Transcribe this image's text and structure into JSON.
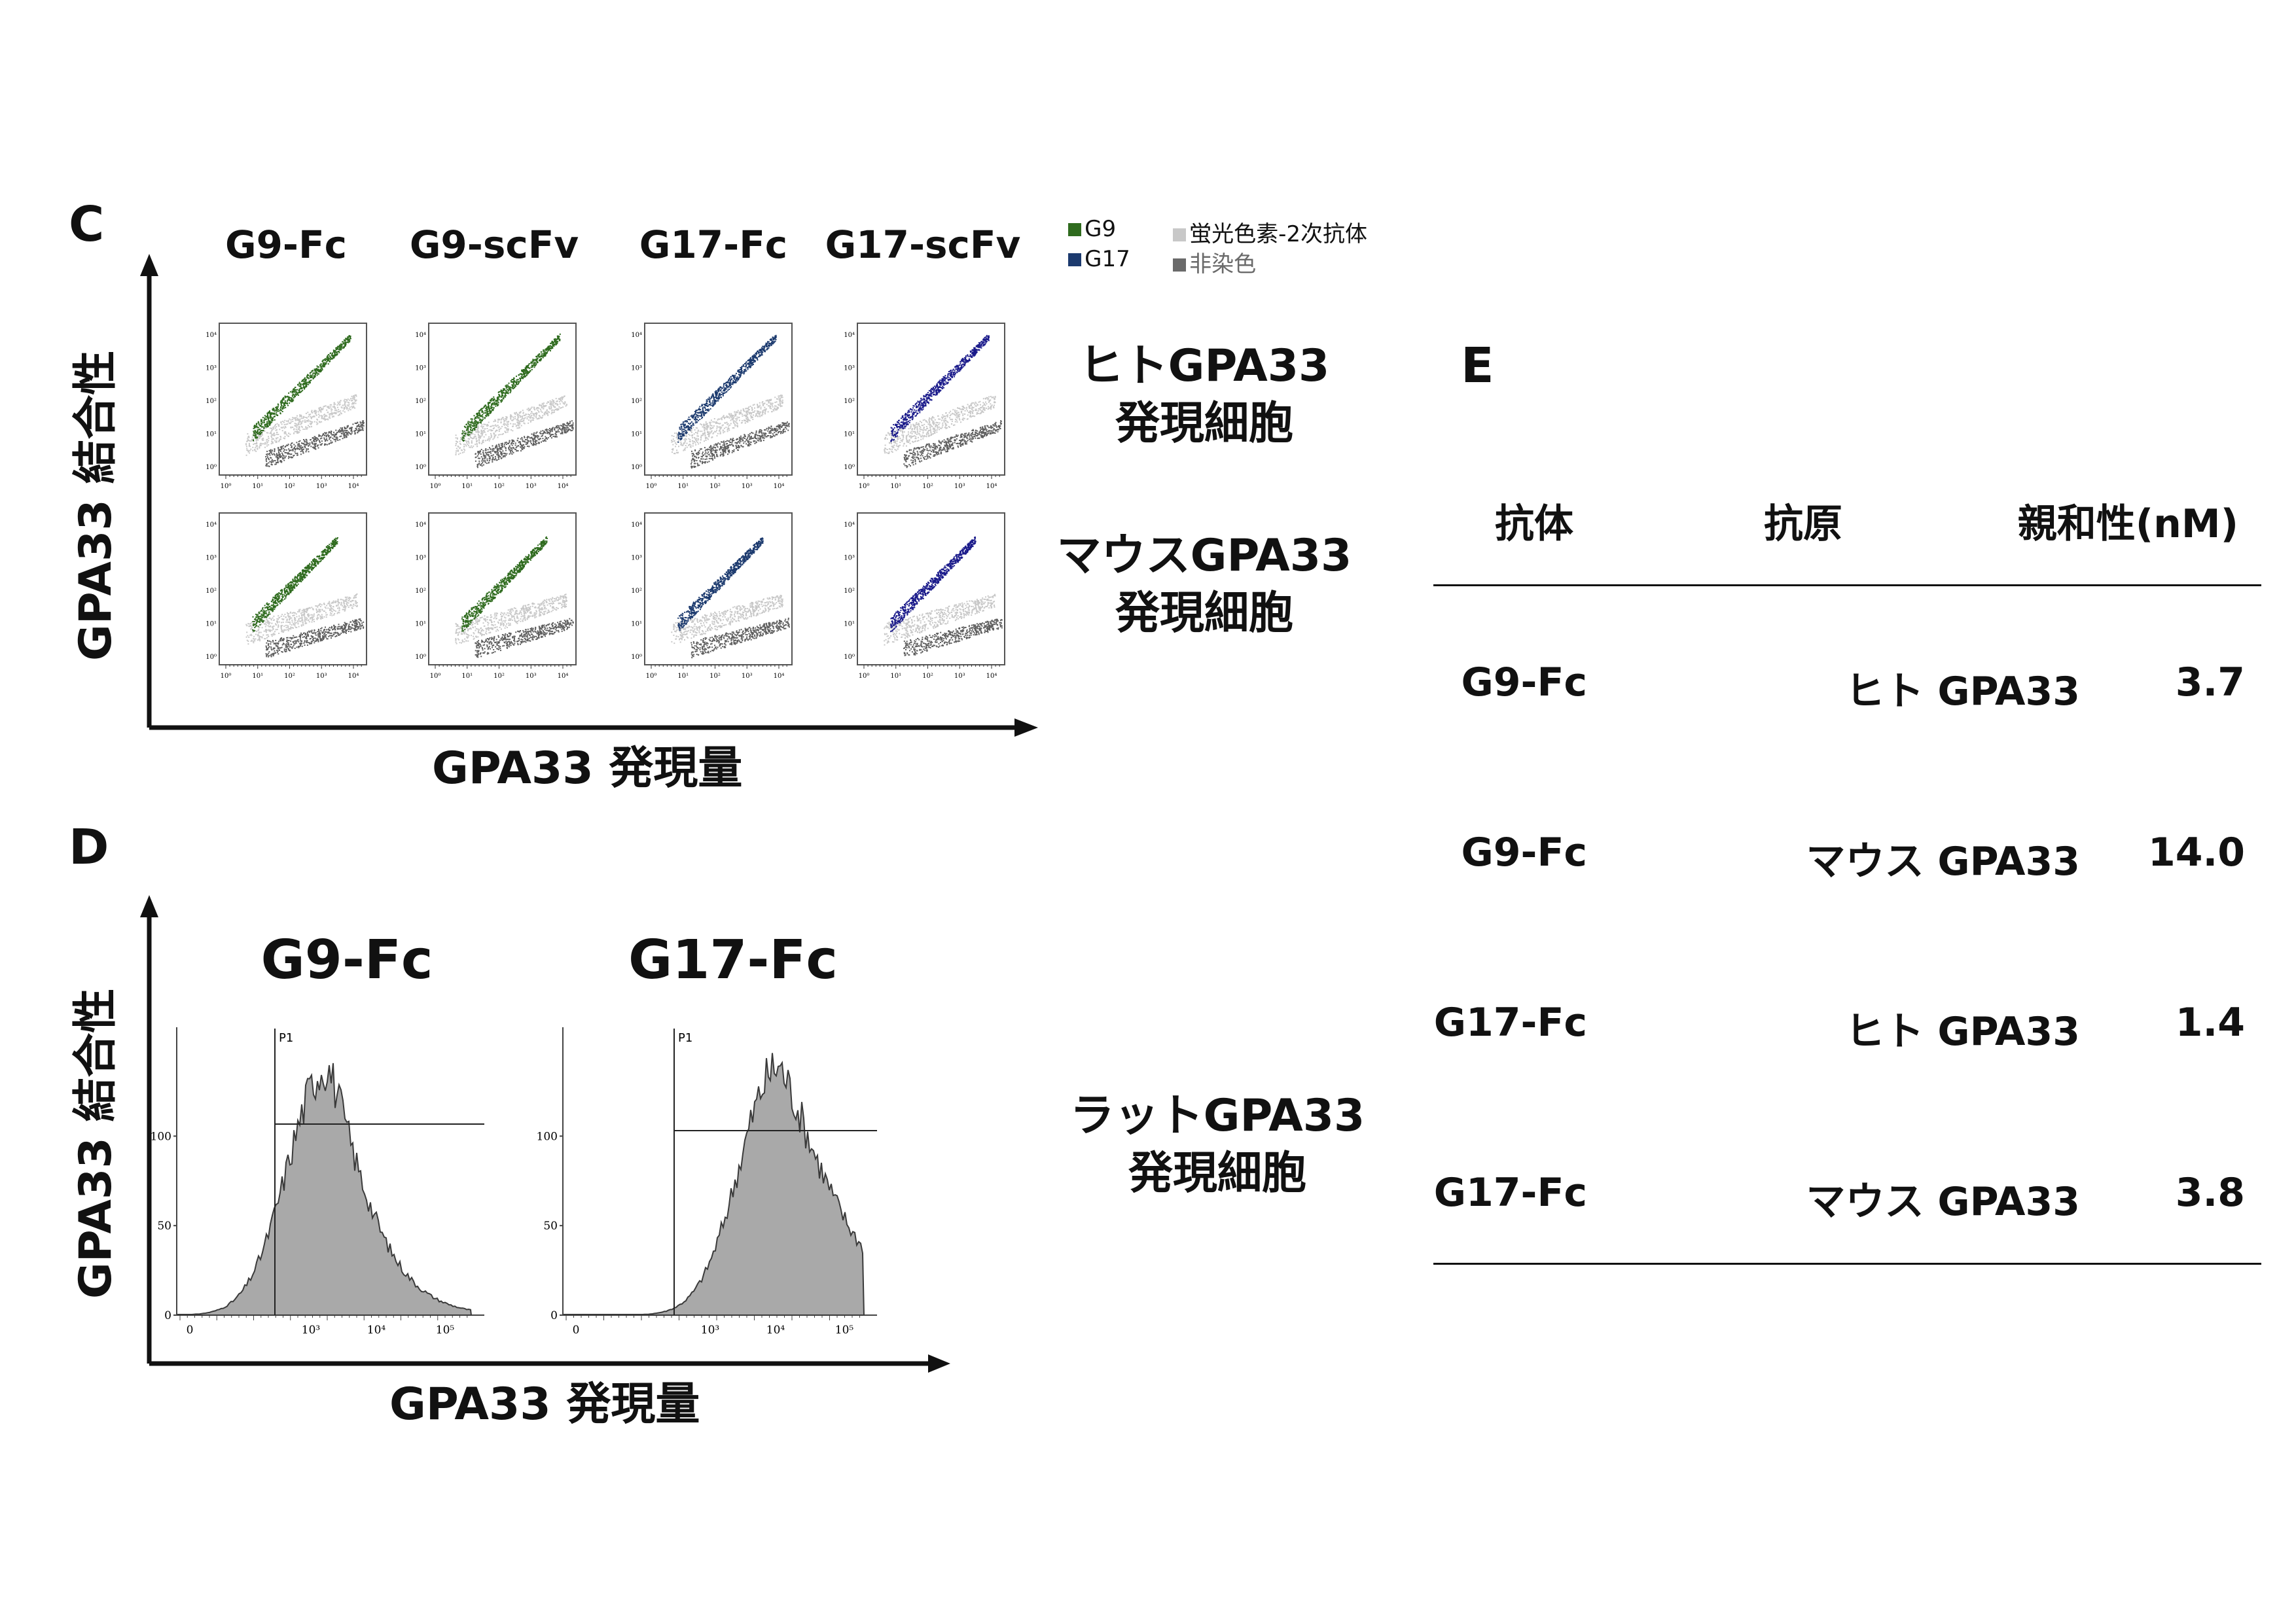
{
  "panel_c": {
    "letter": "C",
    "columns": [
      "G9-Fc",
      "G9-scFv",
      "G17-Fc",
      "G17-scFv"
    ],
    "legend": [
      {
        "label": "G9",
        "color": "#2f6b1e"
      },
      {
        "label": "G17",
        "color": "#1c3a6e"
      },
      {
        "label": "蛍光色素-2次抗体",
        "color": "#c8c8c8"
      },
      {
        "label": "非染色",
        "color": "#6a6a6a"
      }
    ],
    "rows": [
      {
        "line1": "ヒトGPA33",
        "line2": "発現細胞"
      },
      {
        "line1": "マウスGPA33",
        "line2": "発現細胞"
      }
    ],
    "y_axis": "GPA33 結合性",
    "x_axis": "GPA33 発現量",
    "dot_tick_labels": [
      "10⁰",
      "10¹",
      "10²",
      "10³",
      "10⁴"
    ],
    "series_colors": [
      "#2f6b1e",
      "#2f6b1e",
      "#1c3a6e",
      "#1a1a8a"
    ]
  },
  "panel_d": {
    "letter": "D",
    "y_axis": "GPA33 結合性",
    "x_axis": "GPA33 発現量",
    "row_label": {
      "line1": "ラットGPA33",
      "line2": "発現細胞"
    },
    "histograms": [
      {
        "title": "G9-Fc",
        "gate": "P1",
        "y_ticks": [
          "100",
          "50",
          "0"
        ],
        "x_ticks": [
          "0",
          "10³",
          "10⁴",
          "10⁵"
        ]
      },
      {
        "title": "G17-Fc",
        "gate": "P1",
        "y_ticks": [
          "100",
          "50",
          "0"
        ],
        "x_ticks": [
          "0",
          "10³",
          "10⁴",
          "10⁵"
        ]
      }
    ]
  },
  "panel_e": {
    "letter": "E",
    "headers": [
      "抗体",
      "抗原",
      "親和性(nM)"
    ],
    "rows": [
      [
        "G9-Fc",
        "ヒト GPA33",
        "3.7"
      ],
      [
        "G9-Fc",
        "マウス GPA33",
        "14.0"
      ],
      [
        "G17-Fc",
        "ヒト GPA33",
        "1.4"
      ],
      [
        "G17-Fc",
        "マウス GPA33",
        "3.8"
      ]
    ]
  }
}
